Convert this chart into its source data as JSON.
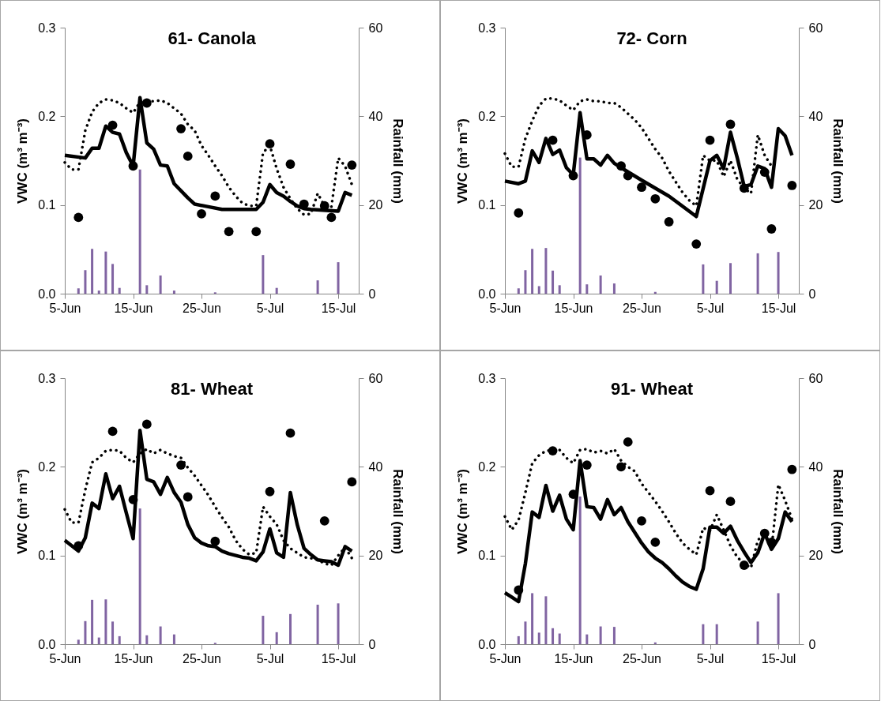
{
  "chart_data": [
    {
      "type": "line",
      "title": "61- Canola",
      "ylabel": "VWC (m³ m⁻³)",
      "y2label": "Rainfall (mm)",
      "xlim": [
        "--06-05",
        "--07-18"
      ],
      "xticks": [
        {
          "value": "--06-05",
          "label": "5-Jun"
        },
        {
          "value": "--06-15",
          "label": "15-Jun"
        },
        {
          "value": "--06-25",
          "label": "25-Jun"
        },
        {
          "value": "--07-05",
          "label": "5-Jul"
        },
        {
          "value": "--07-15",
          "label": "15-Jul"
        }
      ],
      "ylim": [
        0,
        0.3
      ],
      "yticks": [
        {
          "value": 0,
          "label": "0.0"
        },
        {
          "value": 0.1,
          "label": "0.1"
        },
        {
          "value": 0.2,
          "label": "0.2"
        },
        {
          "value": 0.3,
          "label": "0.3"
        }
      ],
      "y2lim": [
        0,
        60
      ],
      "y2ticks": [
        0,
        20,
        40,
        60
      ],
      "x": [
        "--06-05",
        "--06-06",
        "--06-07",
        "--06-08",
        "--06-09",
        "--06-10",
        "--06-11",
        "--06-12",
        "--06-13",
        "--06-14",
        "--06-15",
        "--06-16",
        "--06-17",
        "--06-18",
        "--06-19",
        "--06-20",
        "--06-21",
        "--06-22",
        "--06-23",
        "--06-24",
        "--06-25",
        "--06-26",
        "--06-27",
        "--06-28",
        "--06-29",
        "--06-30",
        "--07-01",
        "--07-02",
        "--07-03",
        "--07-04",
        "--07-05",
        "--07-06",
        "--07-07",
        "--07-08",
        "--07-09",
        "--07-10",
        "--07-11",
        "--07-12",
        "--07-13",
        "--07-14",
        "--07-15",
        "--07-16",
        "--07-17"
      ],
      "series": [
        {
          "type": "bar",
          "axis": "y2",
          "color": "#8064a2",
          "x": [
            "--06-07",
            "--06-08",
            "--06-09",
            "--06-10",
            "--06-11",
            "--06-12",
            "--06-13",
            "--06-16",
            "--06-17",
            "--06-19",
            "--06-21",
            "--06-27",
            "--07-04",
            "--07-06",
            "--07-12",
            "--07-15"
          ],
          "values": [
            1.2,
            5.3,
            10.1,
            0.7,
            9.5,
            6.7,
            1.3,
            28.0,
            1.9,
            4.1,
            0.7,
            0.3,
            8.7,
            1.3,
            3.0,
            7.1
          ]
        },
        {
          "type": "line",
          "line_style": "dotted",
          "color": "#000000",
          "values": [
            0.148,
            0.14,
            0.14,
            0.184,
            0.205,
            0.215,
            0.219,
            0.218,
            0.215,
            0.209,
            0.204,
            0.216,
            0.217,
            0.217,
            0.218,
            0.215,
            0.209,
            0.203,
            0.191,
            0.184,
            0.167,
            0.156,
            0.144,
            0.133,
            0.12,
            0.11,
            0.102,
            0.099,
            0.099,
            0.159,
            0.167,
            0.141,
            0.12,
            0.107,
            0.096,
            0.089,
            0.09,
            0.113,
            0.099,
            0.098,
            0.153,
            0.144,
            0.123
          ]
        },
        {
          "type": "line",
          "line_style": "solid",
          "color": "#000000",
          "x": [
            "--06-05",
            "--06-08",
            "--06-09",
            "--06-10",
            "--06-11",
            "--06-12",
            "--06-13",
            "--06-14",
            "--06-15",
            "--06-16",
            "--06-17",
            "--06-18",
            "--06-19",
            "--06-20",
            "--06-21",
            "--06-23",
            "--06-24",
            "--06-26",
            "--06-28",
            "--07-03",
            "--07-04",
            "--07-05",
            "--07-06",
            "--07-07",
            "--07-08",
            "--07-09",
            "--07-10",
            "--07-11",
            "--07-15",
            "--07-16",
            "--07-17"
          ],
          "values": [
            0.156,
            0.153,
            0.164,
            0.164,
            0.189,
            0.182,
            0.18,
            0.159,
            0.144,
            0.221,
            0.17,
            0.163,
            0.145,
            0.144,
            0.124,
            0.108,
            0.101,
            0.098,
            0.095,
            0.095,
            0.103,
            0.123,
            0.114,
            0.11,
            0.104,
            0.099,
            0.096,
            0.095,
            0.093,
            0.114,
            0.111
          ]
        },
        {
          "type": "scatter",
          "marker": "circle",
          "color": "#000000",
          "x": [
            "--06-07",
            "--06-12",
            "--06-15",
            "--06-17",
            "--06-22",
            "--06-23",
            "--06-25",
            "--06-27",
            "--06-29",
            "--07-03",
            "--07-05",
            "--07-08",
            "--07-10",
            "--07-13",
            "--07-14",
            "--07-17"
          ],
          "values": [
            0.086,
            0.19,
            0.144,
            0.215,
            0.186,
            0.155,
            0.09,
            0.11,
            0.07,
            0.07,
            0.169,
            0.146,
            0.101,
            0.099,
            0.086,
            0.145
          ]
        }
      ]
    },
    {
      "type": "line",
      "title": "72- Corn",
      "ylabel": "VWC (m³ m⁻³)",
      "y2label": "Rainfall (mm)",
      "xlim": [
        "--06-05",
        "--07-18"
      ],
      "xticks": [
        {
          "value": "--06-05",
          "label": "5-Jun"
        },
        {
          "value": "--06-15",
          "label": "15-Jun"
        },
        {
          "value": "--06-25",
          "label": "25-Jun"
        },
        {
          "value": "--07-05",
          "label": "5-Jul"
        },
        {
          "value": "--07-15",
          "label": "15-Jul"
        }
      ],
      "ylim": [
        0,
        0.3
      ],
      "yticks": [
        {
          "value": 0,
          "label": "0.0"
        },
        {
          "value": 0.1,
          "label": "0.1"
        },
        {
          "value": 0.2,
          "label": "0.2"
        },
        {
          "value": 0.3,
          "label": "0.3"
        }
      ],
      "y2lim": [
        0,
        60
      ],
      "y2ticks": [
        0,
        20,
        40,
        60
      ],
      "x": [
        "--06-05",
        "--06-06",
        "--06-07",
        "--06-08",
        "--06-09",
        "--06-10",
        "--06-11",
        "--06-12",
        "--06-13",
        "--06-14",
        "--06-15",
        "--06-16",
        "--06-17",
        "--06-18",
        "--06-19",
        "--06-20",
        "--06-21",
        "--06-22",
        "--06-23",
        "--06-24",
        "--06-25",
        "--06-26",
        "--06-27",
        "--06-28",
        "--06-29",
        "--06-30",
        "--07-01",
        "--07-02",
        "--07-03",
        "--07-04",
        "--07-05",
        "--07-06",
        "--07-07",
        "--07-08",
        "--07-09",
        "--07-10",
        "--07-11",
        "--07-12",
        "--07-13",
        "--07-14"
      ],
      "series": [
        {
          "type": "bar",
          "axis": "y2",
          "color": "#8064a2",
          "x": [
            "--06-07",
            "--06-08",
            "--06-09",
            "--06-10",
            "--06-11",
            "--06-12",
            "--06-13",
            "--06-16",
            "--06-17",
            "--06-19",
            "--06-21",
            "--06-27",
            "--07-04",
            "--07-06",
            "--07-08",
            "--07-12",
            "--07-15"
          ],
          "values": [
            1.2,
            5.3,
            10.1,
            1.7,
            10.3,
            5.2,
            1.9,
            30.7,
            2.1,
            4.1,
            2.3,
            0.4,
            6.6,
            2.9,
            6.9,
            9.1,
            9.4
          ]
        },
        {
          "type": "line",
          "line_style": "dotted",
          "color": "#000000",
          "values": [
            0.158,
            0.143,
            0.143,
            0.175,
            0.195,
            0.212,
            0.22,
            0.22,
            0.218,
            0.212,
            0.207,
            0.217,
            0.219,
            0.217,
            0.217,
            0.215,
            0.215,
            0.21,
            0.203,
            0.196,
            0.187,
            0.175,
            0.163,
            0.153,
            0.138,
            0.126,
            0.114,
            0.105,
            0.099,
            0.156,
            0.15,
            0.15,
            0.132,
            0.15,
            0.129,
            0.119,
            0.113,
            0.179,
            0.156,
            0.144
          ]
        },
        {
          "type": "line",
          "line_style": "solid",
          "color": "#000000",
          "x": [
            "--06-05",
            "--06-07",
            "--06-08",
            "--06-09",
            "--06-10",
            "--06-11",
            "--06-12",
            "--06-13",
            "--06-14",
            "--06-15",
            "--06-16",
            "--06-17",
            "--06-18",
            "--06-19",
            "--06-20",
            "--06-21",
            "--06-22",
            "--06-25",
            "--06-29",
            "--07-03",
            "--07-05",
            "--07-06",
            "--07-07",
            "--07-08",
            "--07-09",
            "--07-10",
            "--07-11",
            "--07-12",
            "--07-13",
            "--07-14",
            "--07-15",
            "--07-16",
            "--07-17"
          ],
          "values": [
            0.127,
            0.124,
            0.127,
            0.161,
            0.148,
            0.175,
            0.157,
            0.162,
            0.142,
            0.134,
            0.204,
            0.152,
            0.152,
            0.145,
            0.156,
            0.147,
            0.142,
            0.128,
            0.11,
            0.087,
            0.15,
            0.156,
            0.141,
            0.182,
            0.153,
            0.121,
            0.123,
            0.144,
            0.141,
            0.12,
            0.186,
            0.178,
            0.156
          ]
        },
        {
          "type": "scatter",
          "marker": "circle",
          "color": "#000000",
          "x": [
            "--06-07",
            "--06-12",
            "--06-15",
            "--06-17",
            "--06-22",
            "--06-23",
            "--06-25",
            "--06-27",
            "--06-29",
            "--07-03",
            "--07-05",
            "--07-08",
            "--07-10",
            "--07-13",
            "--07-14",
            "--07-17"
          ],
          "values": [
            0.091,
            0.173,
            0.133,
            0.179,
            0.144,
            0.133,
            0.12,
            0.107,
            0.081,
            0.056,
            0.173,
            0.191,
            0.119,
            0.137,
            0.073,
            0.122
          ]
        }
      ]
    },
    {
      "type": "line",
      "title": "81- Wheat",
      "ylabel": "VWC (m³ m⁻³)",
      "y2label": "Rainfall (mm)",
      "xlim": [
        "--06-05",
        "--07-18"
      ],
      "xticks": [
        {
          "value": "--06-05",
          "label": "5-Jun"
        },
        {
          "value": "--06-15",
          "label": "15-Jun"
        },
        {
          "value": "--06-25",
          "label": "25-Jun"
        },
        {
          "value": "--07-05",
          "label": "5-Jul"
        },
        {
          "value": "--07-15",
          "label": "15-Jul"
        }
      ],
      "ylim": [
        0,
        0.3
      ],
      "yticks": [
        {
          "value": 0,
          "label": "0.0"
        },
        {
          "value": 0.1,
          "label": "0.1"
        },
        {
          "value": 0.2,
          "label": "0.2"
        },
        {
          "value": 0.3,
          "label": "0.3"
        }
      ],
      "y2lim": [
        0,
        60
      ],
      "y2ticks": [
        0,
        20,
        40,
        60
      ],
      "x": [
        "--06-05",
        "--06-06",
        "--06-07",
        "--06-08",
        "--06-09",
        "--06-10",
        "--06-11",
        "--06-12",
        "--06-13",
        "--06-14",
        "--06-15",
        "--06-16",
        "--06-17",
        "--06-18",
        "--06-19",
        "--06-20",
        "--06-21",
        "--06-22",
        "--06-23",
        "--06-24",
        "--06-25",
        "--06-26",
        "--06-27",
        "--06-28",
        "--06-29",
        "--06-30",
        "--07-01",
        "--07-02",
        "--07-03",
        "--07-04",
        "--07-05",
        "--07-06",
        "--07-07",
        "--07-08",
        "--07-09",
        "--07-10",
        "--07-11",
        "--07-12",
        "--07-13",
        "--07-14",
        "--07-15",
        "--07-16",
        "--07-17"
      ],
      "series": [
        {
          "type": "bar",
          "axis": "y2",
          "color": "#8064a2",
          "x": [
            "--06-07",
            "--06-08",
            "--06-09",
            "--06-10",
            "--06-11",
            "--06-12",
            "--06-13",
            "--06-16",
            "--06-17",
            "--06-19",
            "--06-21",
            "--06-27",
            "--07-04",
            "--07-06",
            "--07-08",
            "--07-12",
            "--07-15"
          ],
          "values": [
            1.0,
            5.2,
            10.0,
            1.5,
            10.1,
            5.1,
            1.8,
            30.6,
            2.0,
            4.0,
            2.2,
            0.3,
            6.4,
            2.7,
            6.8,
            8.9,
            9.2
          ]
        },
        {
          "type": "line",
          "line_style": "dotted",
          "color": "#000000",
          "values": [
            0.152,
            0.137,
            0.137,
            0.174,
            0.205,
            0.21,
            0.218,
            0.219,
            0.218,
            0.21,
            0.205,
            0.215,
            0.22,
            0.215,
            0.219,
            0.215,
            0.212,
            0.21,
            0.199,
            0.19,
            0.179,
            0.168,
            0.155,
            0.143,
            0.132,
            0.117,
            0.107,
            0.101,
            0.103,
            0.155,
            0.144,
            0.135,
            0.117,
            0.108,
            0.103,
            0.098,
            0.097,
            0.095,
            0.091,
            0.089,
            0.1,
            0.109,
            0.097
          ]
        },
        {
          "type": "line",
          "line_style": "solid",
          "color": "#000000",
          "values": [
            0.117,
            0.111,
            0.105,
            0.12,
            0.159,
            0.153,
            0.192,
            0.164,
            0.178,
            0.148,
            0.119,
            0.241,
            0.186,
            0.183,
            0.169,
            0.188,
            0.171,
            0.16,
            0.135,
            0.12,
            0.114,
            0.111,
            0.11,
            0.105,
            0.102,
            0.1,
            0.098,
            0.097,
            0.094,
            0.104,
            0.13,
            0.103,
            0.098,
            0.171,
            0.135,
            0.108,
            0.101,
            0.095,
            0.094,
            0.093,
            0.089,
            0.11,
            0.105
          ]
        },
        {
          "type": "scatter",
          "marker": "circle",
          "color": "#000000",
          "x": [
            "--06-07",
            "--06-12",
            "--06-15",
            "--06-17",
            "--06-22",
            "--06-23",
            "--06-27",
            "--07-05",
            "--07-08",
            "--07-13",
            "--07-17"
          ],
          "values": [
            0.111,
            0.24,
            0.163,
            0.248,
            0.202,
            0.166,
            0.116,
            0.172,
            0.238,
            0.139,
            0.183
          ]
        }
      ]
    },
    {
      "type": "line",
      "title": "91- Wheat",
      "ylabel": "VWC (m³ m⁻³)",
      "y2label": "Rainfall (mm)",
      "xlim": [
        "--06-05",
        "--07-18"
      ],
      "xticks": [
        {
          "value": "--06-05",
          "label": "5-Jun"
        },
        {
          "value": "--06-15",
          "label": "15-Jun"
        },
        {
          "value": "--06-25",
          "label": "25-Jun"
        },
        {
          "value": "--07-05",
          "label": "5-Jul"
        },
        {
          "value": "--07-15",
          "label": "15-Jul"
        }
      ],
      "ylim": [
        0,
        0.3
      ],
      "yticks": [
        {
          "value": 0,
          "label": "0.0"
        },
        {
          "value": 0.1,
          "label": "0.1"
        },
        {
          "value": 0.2,
          "label": "0.2"
        },
        {
          "value": 0.3,
          "label": "0.3"
        }
      ],
      "y2lim": [
        0,
        60
      ],
      "y2ticks": [
        0,
        20,
        40,
        60
      ],
      "x": [
        "--06-05",
        "--06-06",
        "--06-07",
        "--06-08",
        "--06-09",
        "--06-10",
        "--06-11",
        "--06-12",
        "--06-13",
        "--06-14",
        "--06-15",
        "--06-16",
        "--06-17",
        "--06-18",
        "--06-19",
        "--06-20",
        "--06-21",
        "--06-22",
        "--06-23",
        "--06-24",
        "--06-25",
        "--06-26",
        "--06-27",
        "--06-28",
        "--06-29",
        "--06-30",
        "--07-01",
        "--07-02",
        "--07-03",
        "--07-04",
        "--07-05",
        "--07-06",
        "--07-07",
        "--07-08",
        "--07-09",
        "--07-10",
        "--07-11",
        "--07-12",
        "--07-13",
        "--07-14",
        "--07-15",
        "--07-16",
        "--07-17"
      ],
      "series": [
        {
          "type": "bar",
          "axis": "y2",
          "color": "#8064a2",
          "x": [
            "--06-07",
            "--06-08",
            "--06-09",
            "--06-10",
            "--06-11",
            "--06-12",
            "--06-13",
            "--06-16",
            "--06-17",
            "--06-19",
            "--06-21",
            "--06-27",
            "--07-04",
            "--07-06",
            "--07-12",
            "--07-15"
          ],
          "values": [
            1.8,
            5.1,
            11.5,
            2.6,
            10.8,
            3.6,
            2.4,
            33.3,
            2.2,
            4.0,
            3.9,
            0.4,
            4.5,
            4.5,
            5.1,
            11.5
          ]
        },
        {
          "type": "line",
          "line_style": "dotted",
          "color": "#000000",
          "values": [
            0.144,
            0.129,
            0.14,
            0.171,
            0.204,
            0.213,
            0.218,
            0.219,
            0.219,
            0.21,
            0.204,
            0.219,
            0.22,
            0.216,
            0.218,
            0.215,
            0.22,
            0.207,
            0.2,
            0.195,
            0.181,
            0.171,
            0.161,
            0.15,
            0.138,
            0.125,
            0.114,
            0.107,
            0.101,
            0.131,
            0.128,
            0.146,
            0.129,
            0.111,
            0.098,
            0.091,
            0.086,
            0.117,
            0.126,
            0.107,
            0.18,
            0.162,
            0.141
          ]
        },
        {
          "type": "line",
          "line_style": "solid",
          "color": "#000000",
          "values": [
            0.058,
            0.053,
            0.048,
            0.091,
            0.149,
            0.143,
            0.179,
            0.15,
            0.168,
            0.141,
            0.129,
            0.207,
            0.155,
            0.154,
            0.141,
            0.163,
            0.146,
            0.154,
            0.138,
            0.126,
            0.114,
            0.104,
            0.097,
            0.092,
            0.085,
            0.077,
            0.07,
            0.065,
            0.062,
            0.085,
            0.132,
            0.132,
            0.125,
            0.133,
            0.117,
            0.104,
            0.092,
            0.103,
            0.125,
            0.107,
            0.119,
            0.149,
            0.138
          ]
        },
        {
          "type": "scatter",
          "marker": "circle",
          "color": "#000000",
          "x": [
            "--06-07",
            "--06-12",
            "--06-15",
            "--06-17",
            "--06-22",
            "--06-23",
            "--06-25",
            "--06-27",
            "--07-05",
            "--07-08",
            "--07-10",
            "--07-13",
            "--07-14",
            "--07-17"
          ],
          "values": [
            0.061,
            0.218,
            0.169,
            0.202,
            0.2,
            0.228,
            0.139,
            0.115,
            0.173,
            0.161,
            0.089,
            0.125,
            0.115,
            0.197
          ]
        }
      ]
    }
  ]
}
